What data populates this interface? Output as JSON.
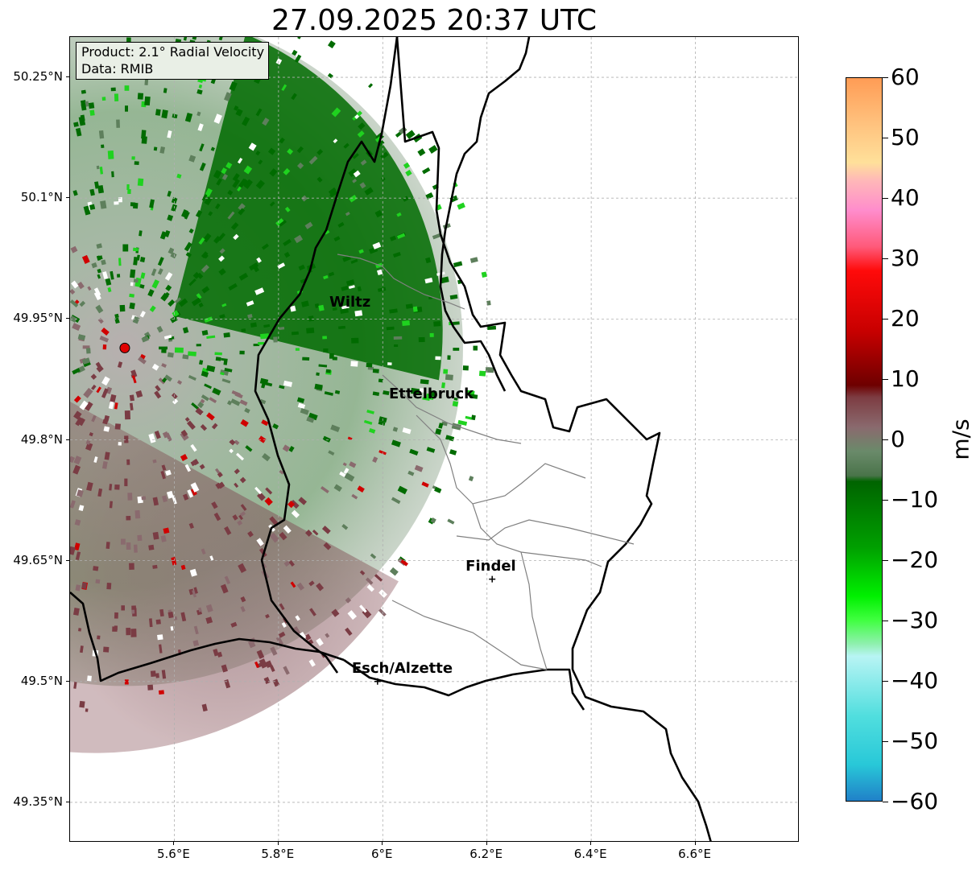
{
  "title": "27.09.2025 20:37 UTC",
  "info_box": {
    "product": "Product: 2.1° Radial Velocity",
    "source": "Data: RMIB"
  },
  "lat_ticks": [
    "50.25°N",
    "50.1°N",
    "49.95°N",
    "49.8°N",
    "49.65°N",
    "49.5°N",
    "49.35°N"
  ],
  "lat_values": [
    50.25,
    50.1,
    49.95,
    49.8,
    49.65,
    49.5,
    49.35
  ],
  "lon_ticks": [
    "5.6°E",
    "5.8°E",
    "6°E",
    "6.2°E",
    "6.4°E",
    "6.6°E"
  ],
  "lon_values": [
    5.6,
    5.8,
    6.0,
    6.2,
    6.4,
    6.6
  ],
  "map_extent": {
    "lon_min": 5.4,
    "lon_max": 6.8,
    "lat_min": 49.3,
    "lat_max": 50.3
  },
  "radar_site": {
    "lon": 5.505,
    "lat": 49.914,
    "color": "#e00000"
  },
  "cities": [
    {
      "name": "Wiltz",
      "lon": 5.93,
      "lat": 49.97,
      "marker": false
    },
    {
      "name": "Ettelbruck",
      "lon": 6.1,
      "lat": 49.85,
      "marker": false
    },
    {
      "name": "Findel",
      "lon": 6.21,
      "lat": 49.627,
      "marker": true
    },
    {
      "name": "Esch/Alzette",
      "lon": 5.99,
      "lat": 49.5,
      "marker": true
    }
  ],
  "colorbar": {
    "label": "m/s",
    "min": -60,
    "max": 60,
    "ticks": [
      "60",
      "50",
      "40",
      "30",
      "20",
      "10",
      "0",
      "−10",
      "−20",
      "−30",
      "−40",
      "−50",
      "−60"
    ],
    "tick_values": [
      60,
      50,
      40,
      30,
      20,
      10,
      0,
      -10,
      -20,
      -30,
      -40,
      -50,
      -60
    ],
    "stops": [
      {
        "value": 60,
        "color": "#ff9c55"
      },
      {
        "value": 52,
        "color": "#ffc480"
      },
      {
        "value": 46,
        "color": "#ffe09a"
      },
      {
        "value": 43,
        "color": "#ffb8b8"
      },
      {
        "value": 38,
        "color": "#ff8ccc"
      },
      {
        "value": 32,
        "color": "#ff5a7a"
      },
      {
        "value": 28,
        "color": "#ff0a0a"
      },
      {
        "value": 18,
        "color": "#c80000"
      },
      {
        "value": 9,
        "color": "#6e0000"
      },
      {
        "value": 7,
        "color": "#7d3c42"
      },
      {
        "value": 2,
        "color": "#8a6a6e"
      },
      {
        "value": -2,
        "color": "#6a8a6a"
      },
      {
        "value": -6,
        "color": "#4a744a"
      },
      {
        "value": -7,
        "color": "#006400"
      },
      {
        "value": -18,
        "color": "#00a000"
      },
      {
        "value": -26,
        "color": "#00f000"
      },
      {
        "value": -30,
        "color": "#40ff40"
      },
      {
        "value": -34,
        "color": "#90f0b0"
      },
      {
        "value": -36,
        "color": "#b8f4f4"
      },
      {
        "value": -46,
        "color": "#50dede"
      },
      {
        "value": -54,
        "color": "#28c8d8"
      },
      {
        "value": -60,
        "color": "#2080c8"
      }
    ]
  },
  "palette": {
    "inbound_dark": "#006b00",
    "inbound_mid": "#5e7f5c",
    "inbound_bright": "#1fd21f",
    "outbound_dark": "#7a3c44",
    "outbound_mid": "#8a6a6e",
    "outbound_red": "#d00000",
    "border_color": "#000000",
    "canton_color": "#808080",
    "grid_color": "#b0b0b0"
  }
}
